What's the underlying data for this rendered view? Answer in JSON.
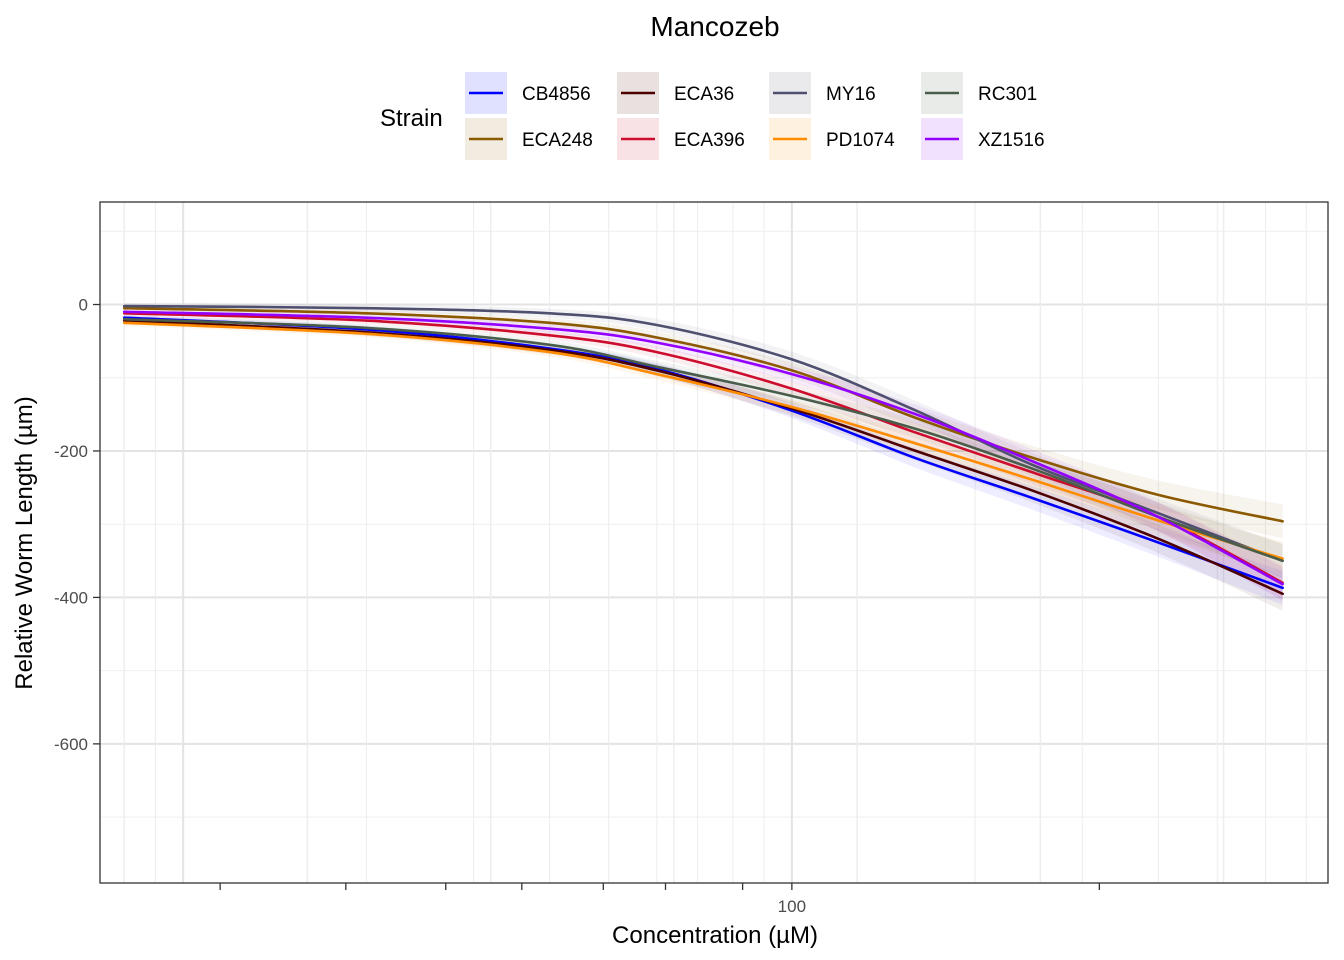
{
  "chart_data": {
    "type": "line",
    "title": "Mancozeb",
    "xlabel": "Concentration (µM)",
    "ylabel": "Relative Worm Length (µm)",
    "x_scale": "log10",
    "xlim": [
      7.3,
      760
    ],
    "ylim": [
      -790,
      140
    ],
    "x_tick_labels": [
      {
        "value": 100,
        "label": "100"
      }
    ],
    "y_ticks": [
      0,
      -200,
      -400,
      -600
    ],
    "y_tick_labels": [
      "0",
      "-200",
      "-400",
      "-600"
    ],
    "legend_title": "Strain",
    "legend_position": "top",
    "grid": true,
    "x": [
      8,
      20,
      40,
      60,
      100,
      160,
      250,
      400,
      640
    ],
    "series": [
      {
        "name": "CB4856",
        "color": "#0000ff",
        "values": [
          -18,
          -34,
          -60,
          -88,
          -145,
          -210,
          -265,
          -325,
          -387
        ]
      },
      {
        "name": "ECA248",
        "color": "#8b5a00",
        "values": [
          -5,
          -12,
          -25,
          -45,
          -90,
          -155,
          -210,
          -260,
          -296
        ]
      },
      {
        "name": "ECA36",
        "color": "#4d0000",
        "values": [
          -22,
          -38,
          -62,
          -90,
          -142,
          -200,
          -255,
          -320,
          -395
        ]
      },
      {
        "name": "ECA396",
        "color": "#cd0d2d",
        "values": [
          -12,
          -22,
          -42,
          -65,
          -115,
          -175,
          -230,
          -290,
          -380
        ]
      },
      {
        "name": "MY16",
        "color": "#4f4f6f",
        "values": [
          -2,
          -5,
          -12,
          -28,
          -75,
          -145,
          -220,
          -285,
          -350
        ]
      },
      {
        "name": "PD1074",
        "color": "#ff8c00",
        "values": [
          -25,
          -40,
          -65,
          -95,
          -140,
          -190,
          -240,
          -295,
          -347
        ]
      },
      {
        "name": "RC301",
        "color": "#4a5d4a",
        "values": [
          -20,
          -32,
          -55,
          -85,
          -125,
          -170,
          -225,
          -290,
          -350
        ]
      },
      {
        "name": "XZ1516",
        "color": "#9400ff",
        "values": [
          -10,
          -18,
          -33,
          -52,
          -95,
          -150,
          -215,
          -290,
          -382
        ]
      }
    ]
  }
}
